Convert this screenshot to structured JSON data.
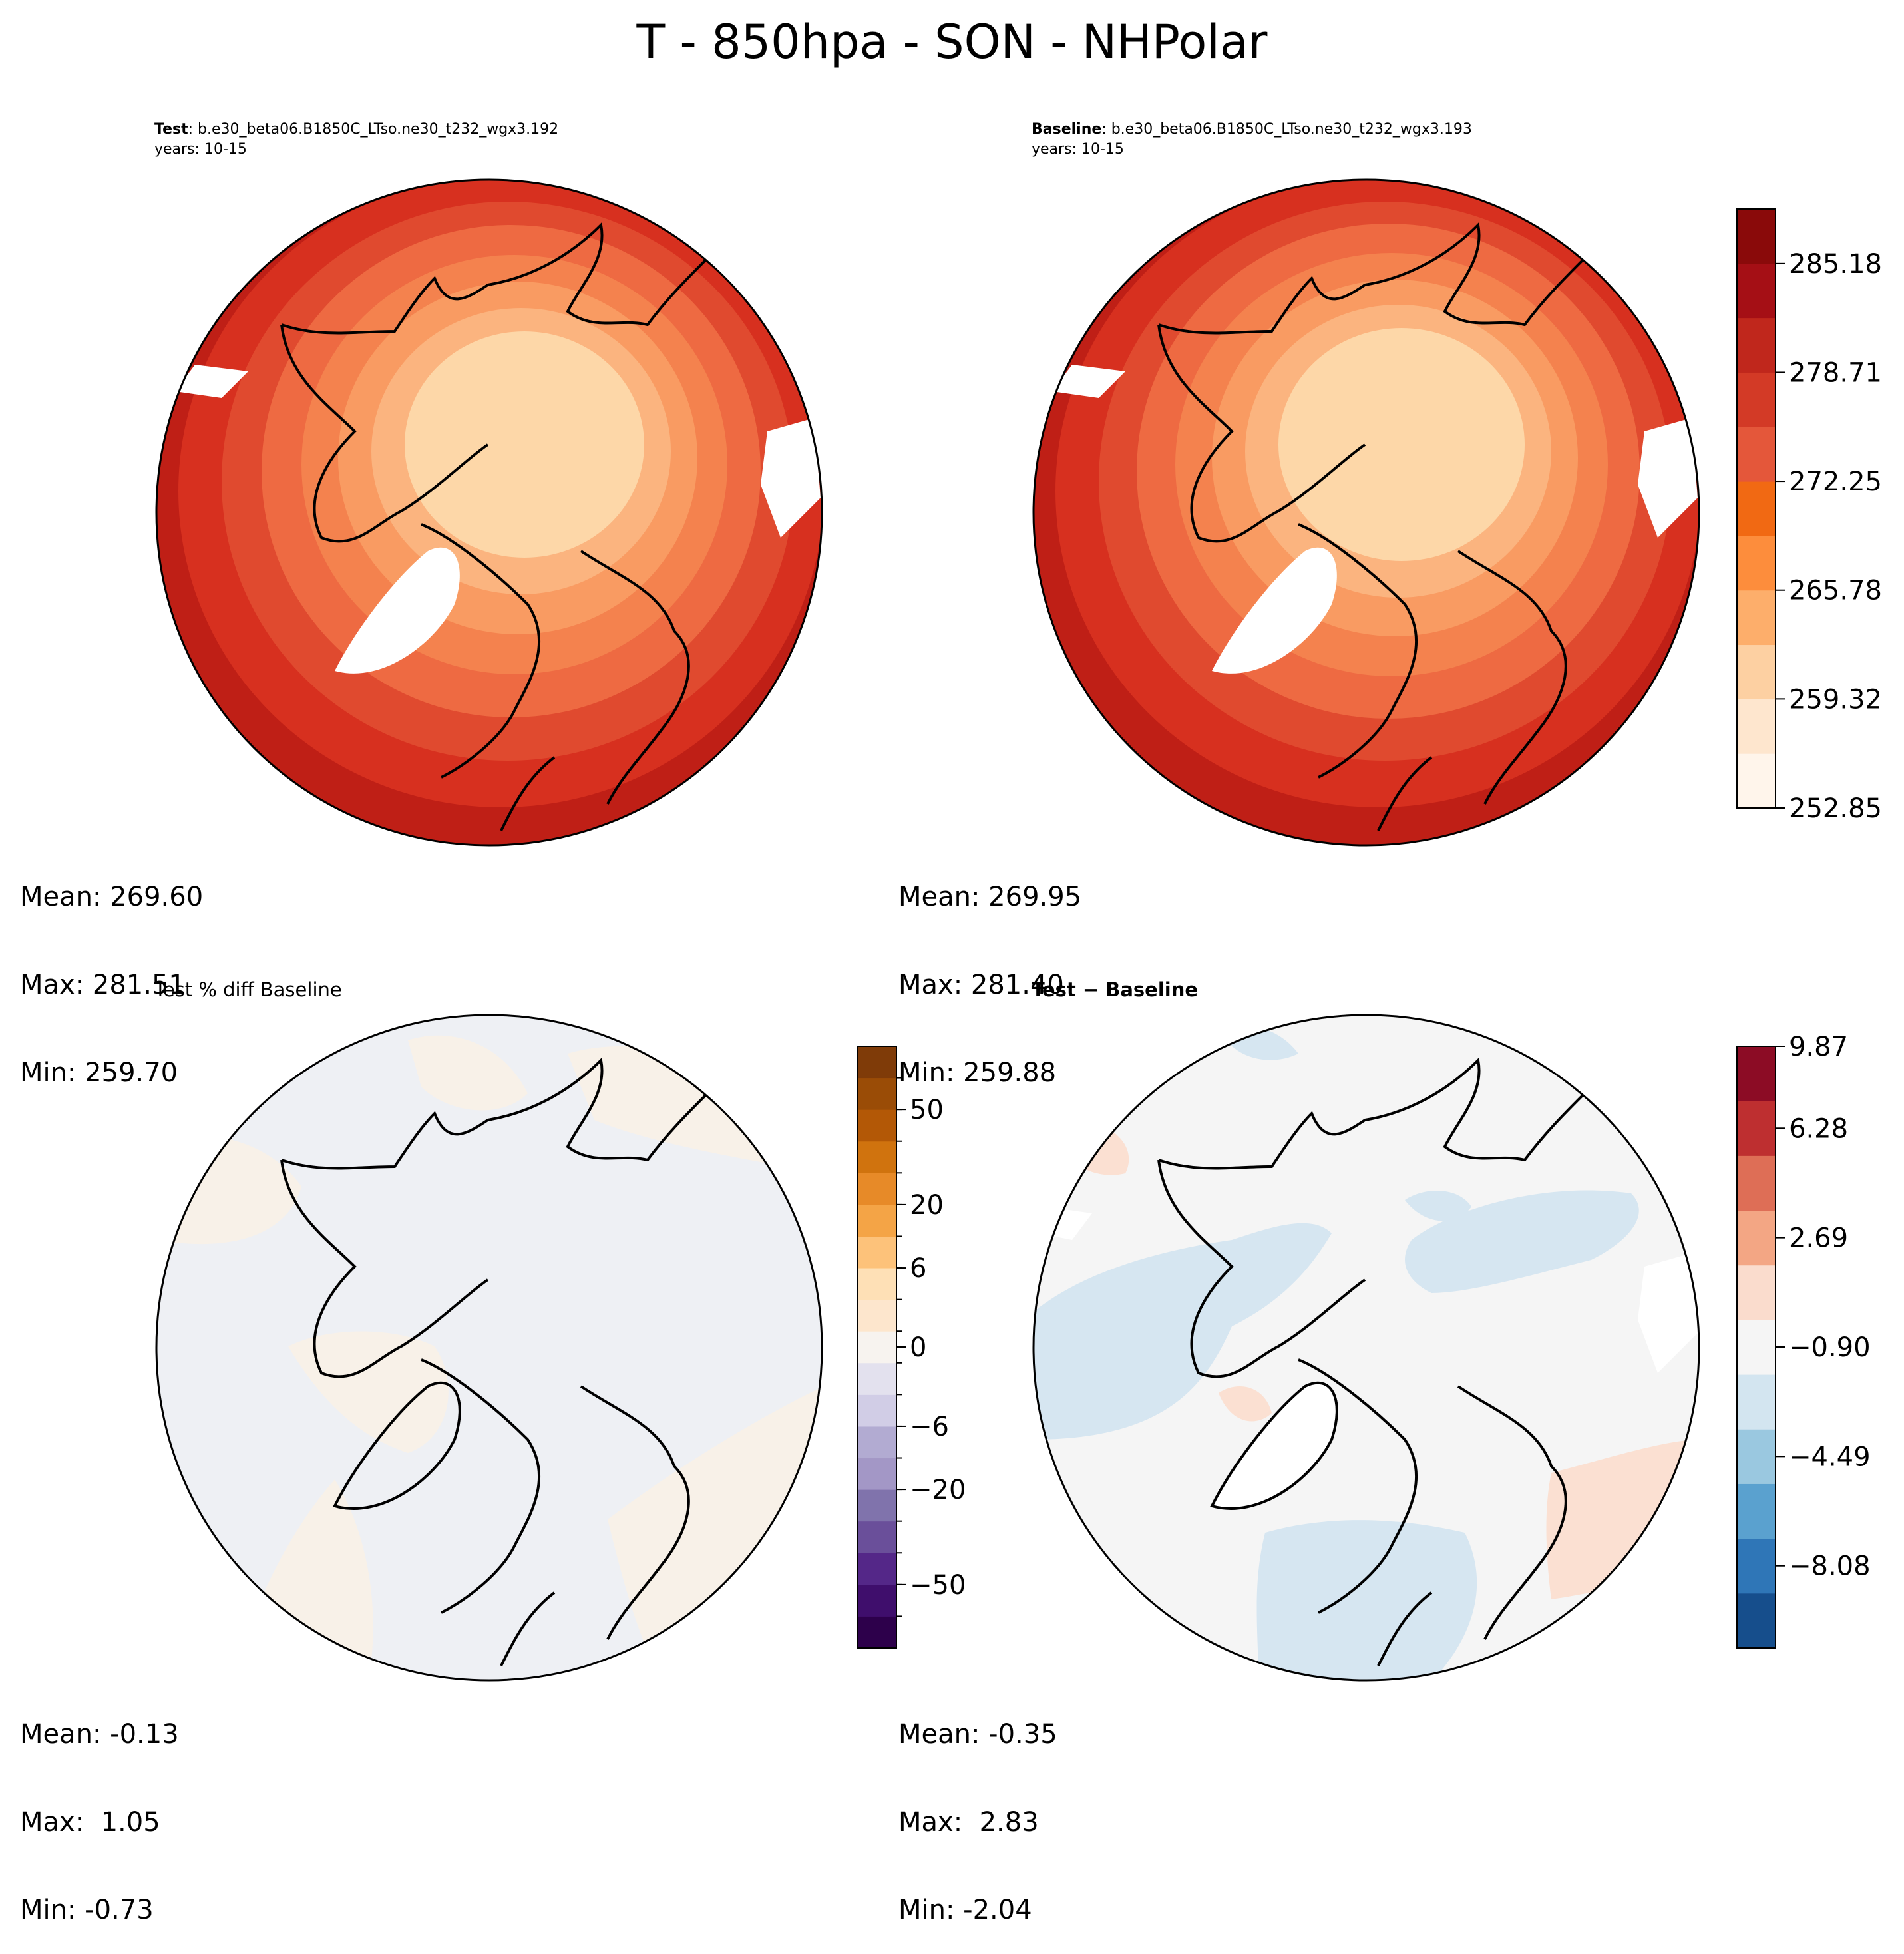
{
  "title": "T - 850hpa - SON - NHPolar",
  "panels": {
    "test": {
      "label_bold": "Test",
      "label_rest": ": b.e30_beta06.B1850C_LTso.ne30_t232_wgx3.192",
      "years": "years: 10-15",
      "stats": {
        "mean": "Mean: 269.60",
        "max": "Max: 281.51",
        "min": "Min: 259.70"
      }
    },
    "baseline": {
      "label_bold": "Baseline",
      "label_rest": ": b.e30_beta06.B1850C_LTso.ne30_t232_wgx3.193",
      "years": "years: 10-15",
      "stats": {
        "mean": "Mean: 269.95",
        "max": "Max: 281.40",
        "min": "Min: 259.88"
      }
    },
    "pctdiff": {
      "label": "Test % diff Baseline",
      "stats": {
        "mean": "Mean: -0.13",
        "max": "Max:  1.05",
        "min": "Min: -0.73"
      }
    },
    "diff": {
      "label_bold": "Test − Baseline",
      "stats": {
        "mean": "Mean: -0.35",
        "max": "Max:  2.83",
        "min": "Min: -2.04"
      }
    }
  },
  "colorbars": {
    "temperature": {
      "ticks": [
        "252.85",
        "259.32",
        "265.78",
        "272.25",
        "278.71",
        "285.18"
      ],
      "colors": [
        "#fff5eb",
        "#fee6ce",
        "#fdd0a2",
        "#fdae6b",
        "#fd8d3c",
        "#f16913",
        "#e4573a",
        "#d33a26",
        "#c0271c",
        "#a50f15",
        "#8a0a0a"
      ]
    },
    "percent": {
      "ticks": [
        "−50",
        "−20",
        "−6",
        "0",
        "6",
        "20",
        "50"
      ],
      "colors": [
        "#2d004b",
        "#3f0e6c",
        "#542788",
        "#6a4f9a",
        "#8073ac",
        "#a397c6",
        "#b2abd2",
        "#d1cde6",
        "#e3e1ee",
        "#f7f3ef",
        "#fde6cd",
        "#fee0b6",
        "#fdc27a",
        "#f4a446",
        "#e78a28",
        "#d0730e",
        "#b35806",
        "#9a4c06",
        "#7f3b08"
      ],
      "ticks_raw": [
        -50,
        -20,
        -6,
        0,
        6,
        20,
        50
      ]
    },
    "difference": {
      "ticks": [
        "−8.08",
        "−4.49",
        "−0.90",
        "2.69",
        "6.28",
        "9.87"
      ],
      "colors": [
        "#164e8c",
        "#2f76b7",
        "#5aa1cf",
        "#9ac8e0",
        "#d3e5f0",
        "#f5f5f5",
        "#fadccd",
        "#f3a684",
        "#de6e56",
        "#be2f30",
        "#8c0c25"
      ]
    }
  },
  "map_colors": {
    "ring": [
      "#c7241b",
      "#d7301f",
      "#e04a2f",
      "#ee6a42",
      "#f4824e",
      "#f99b62",
      "#fbb47f",
      "#fcc995",
      "#fdd7a8"
    ]
  }
}
